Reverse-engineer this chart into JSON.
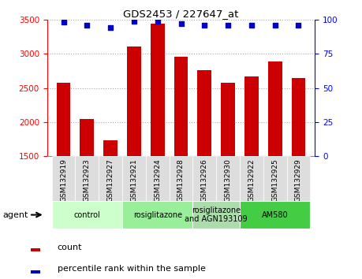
{
  "title": "GDS2453 / 227647_at",
  "categories": [
    "GSM132919",
    "GSM132923",
    "GSM132927",
    "GSM132921",
    "GSM132924",
    "GSM132928",
    "GSM132926",
    "GSM132930",
    "GSM132922",
    "GSM132925",
    "GSM132929"
  ],
  "bar_values": [
    2580,
    2050,
    1730,
    3100,
    3440,
    2960,
    2760,
    2580,
    2670,
    2890,
    2640
  ],
  "percentile_values": [
    98,
    96,
    94,
    99,
    99,
    97,
    96,
    96,
    96,
    96,
    96
  ],
  "bar_color": "#cc0000",
  "dot_color": "#0000cc",
  "ylim_left": [
    1500,
    3500
  ],
  "ylim_right": [
    0,
    100
  ],
  "yticks_left": [
    1500,
    2000,
    2500,
    3000,
    3500
  ],
  "yticks_right": [
    0,
    25,
    50,
    75,
    100
  ],
  "groups": [
    {
      "label": "control",
      "start": 0,
      "end": 3,
      "color": "#ccffcc"
    },
    {
      "label": "rosiglitazone",
      "start": 3,
      "end": 6,
      "color": "#99ee99"
    },
    {
      "label": "rosiglitazone\nand AGN193109",
      "start": 6,
      "end": 8,
      "color": "#aaddaa"
    },
    {
      "label": "AM580",
      "start": 8,
      "end": 11,
      "color": "#44cc44"
    }
  ],
  "legend_count_label": "count",
  "legend_pct_label": "percentile rank within the sample",
  "background_color": "#ffffff",
  "grid_color": "#aaaaaa",
  "tick_bg_color": "#dddddd"
}
